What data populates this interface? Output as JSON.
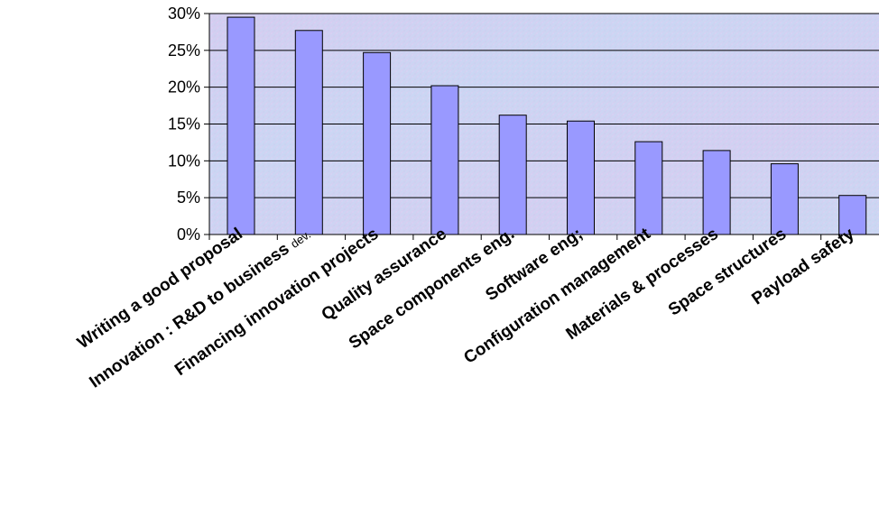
{
  "chart_data": {
    "type": "bar",
    "categories": [
      {
        "text": "Writing a good proposal",
        "suffix": ""
      },
      {
        "text": "Innovation : R&D to business ",
        "suffix": "dev."
      },
      {
        "text": "Financing innovation projects",
        "suffix": ""
      },
      {
        "text": "Quality assurance",
        "suffix": ""
      },
      {
        "text": "Space components eng.",
        "suffix": ""
      },
      {
        "text": "Software eng;",
        "suffix": ""
      },
      {
        "text": "Configuration management",
        "suffix": ""
      },
      {
        "text": "Materials & processes",
        "suffix": ""
      },
      {
        "text": "Space structures",
        "suffix": ""
      },
      {
        "text": "Payload safety",
        "suffix": ""
      }
    ],
    "values": [
      29.5,
      27.7,
      24.7,
      20.2,
      16.2,
      15.4,
      12.6,
      11.4,
      9.6,
      5.3
    ],
    "ylim": [
      0,
      30
    ],
    "yticks": [
      "0%",
      "5%",
      "10%",
      "15%",
      "20%",
      "25%",
      "30%"
    ],
    "grid": true,
    "legend": "none",
    "colors": {
      "bar_fill": "#9999ff",
      "bar_stroke": "#000000",
      "plot_bg": "#cfd6f2",
      "grid": "#000000"
    }
  }
}
